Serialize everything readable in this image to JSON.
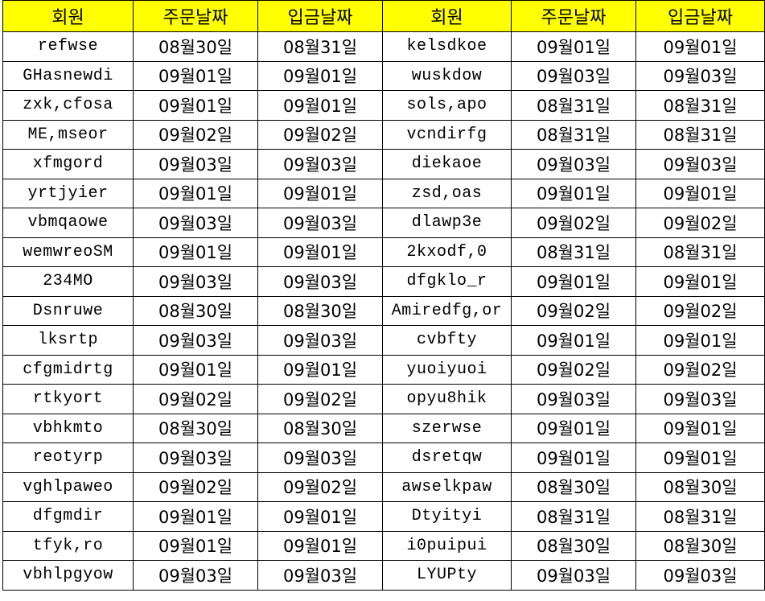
{
  "colors": {
    "header_bg": "#FFFF00",
    "border": "#000000"
  },
  "headers": [
    "회원",
    "주문날짜",
    "입금날짜",
    "회원",
    "주문날짜",
    "입금날짜"
  ],
  "rows": [
    [
      "refwse",
      "08월30일",
      "08월31일",
      "kelsdkoe",
      "09월01일",
      "09월01일"
    ],
    [
      "GHasnewdi",
      "09월01일",
      "09월01일",
      "wuskdow",
      "09월03일",
      "09월03일"
    ],
    [
      "zxk,cfosa",
      "09월01일",
      "09월01일",
      "sols,apo",
      "08월31일",
      "08월31일"
    ],
    [
      "ME,mseor",
      "09월02일",
      "09월02일",
      "vcndirfg",
      "08월31일",
      "08월31일"
    ],
    [
      "xfmgord",
      "09월03일",
      "09월03일",
      "diekaoe",
      "09월03일",
      "09월03일"
    ],
    [
      "yrtjyier",
      "09월01일",
      "09월01일",
      "zsd,oas",
      "09월01일",
      "09월01일"
    ],
    [
      "vbmqaowe",
      "09월03일",
      "09월03일",
      "dlawp3e",
      "09월02일",
      "09월02일"
    ],
    [
      "wemwreoSM",
      "09월01일",
      "09월01일",
      "2kxodf,0",
      "08월31일",
      "08월31일"
    ],
    [
      "234MO",
      "09월03일",
      "09월03일",
      "dfgklo_r",
      "09월01일",
      "09월01일"
    ],
    [
      "Dsnruwe",
      "08월30일",
      "08월30일",
      "Amiredfg,or",
      "09월02일",
      "09월02일"
    ],
    [
      "lksrtp",
      "09월03일",
      "09월03일",
      "cvbfty",
      "09월01일",
      "09월01일"
    ],
    [
      "cfgmidrtg",
      "09월01일",
      "09월01일",
      "yuoiyuoi",
      "09월02일",
      "09월02일"
    ],
    [
      "rtkyort",
      "09월02일",
      "09월02일",
      "opyu8hik",
      "09월03일",
      "09월03일"
    ],
    [
      "vbhkmto",
      "08월30일",
      "08월30일",
      "szerwse",
      "09월01일",
      "09월01일"
    ],
    [
      "reotyrp",
      "09월03일",
      "09월03일",
      "dsretqw",
      "09월01일",
      "09월01일"
    ],
    [
      "vghlpaweo",
      "09월02일",
      "09월02일",
      "awselkpaw",
      "08월30일",
      "08월30일"
    ],
    [
      "dfgmdir",
      "09월01일",
      "09월01일",
      "Dtyityi",
      "08월31일",
      "08월31일"
    ],
    [
      "tfyk,ro",
      "09월01일",
      "09월01일",
      "i0puipui",
      "08월30일",
      "08월30일"
    ],
    [
      "vbhlpgyow",
      "09월03일",
      "09월03일",
      "LYUPty",
      "09월03일",
      "09월03일"
    ]
  ]
}
